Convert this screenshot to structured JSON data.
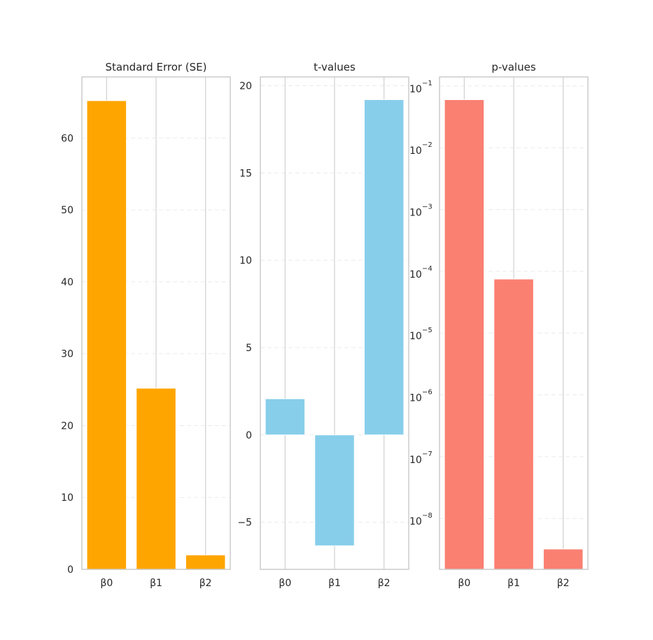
{
  "chart_data": [
    {
      "type": "bar",
      "title": "Standard Error (SE)",
      "categories": [
        "β0",
        "β1",
        "β2"
      ],
      "values": [
        65.2,
        25.2,
        2.0
      ],
      "color": "#FFA500",
      "yscale": "linear",
      "ylim": [
        0,
        68.5
      ],
      "yticks": [
        0,
        10,
        20,
        30,
        40,
        50,
        60
      ],
      "ytick_labels": [
        "0",
        "10",
        "20",
        "30",
        "40",
        "50",
        "60"
      ],
      "grid": true
    },
    {
      "type": "bar",
      "title": "t-values",
      "categories": [
        "β0",
        "β1",
        "β2"
      ],
      "values": [
        2.07,
        -6.35,
        19.2
      ],
      "color": "#87CEEB",
      "yscale": "linear",
      "ylim": [
        -7.7,
        20.5
      ],
      "yticks": [
        -5,
        0,
        5,
        10,
        15,
        20
      ],
      "ytick_labels": [
        "−5",
        "0",
        "5",
        "10",
        "15",
        "20"
      ],
      "grid": true
    },
    {
      "type": "bar",
      "title": "p-values",
      "categories": [
        "β0",
        "β1",
        "β2"
      ],
      "values": [
        0.06,
        7.5e-05,
        3.2e-09
      ],
      "color": "#FA8072",
      "yscale": "log",
      "ylim": [
        1.5e-09,
        0.14
      ],
      "yticks": [
        1e-08,
        1e-07,
        1e-06,
        1e-05,
        0.0001,
        0.001,
        0.01,
        0.1
      ],
      "ytick_labels": [
        {
          "base": "10",
          "exp": "−8"
        },
        {
          "base": "10",
          "exp": "−7"
        },
        {
          "base": "10",
          "exp": "−6"
        },
        {
          "base": "10",
          "exp": "−5"
        },
        {
          "base": "10",
          "exp": "−4"
        },
        {
          "base": "10",
          "exp": "−3"
        },
        {
          "base": "10",
          "exp": "−2"
        },
        {
          "base": "10",
          "exp": "−1"
        }
      ],
      "grid": true
    }
  ]
}
